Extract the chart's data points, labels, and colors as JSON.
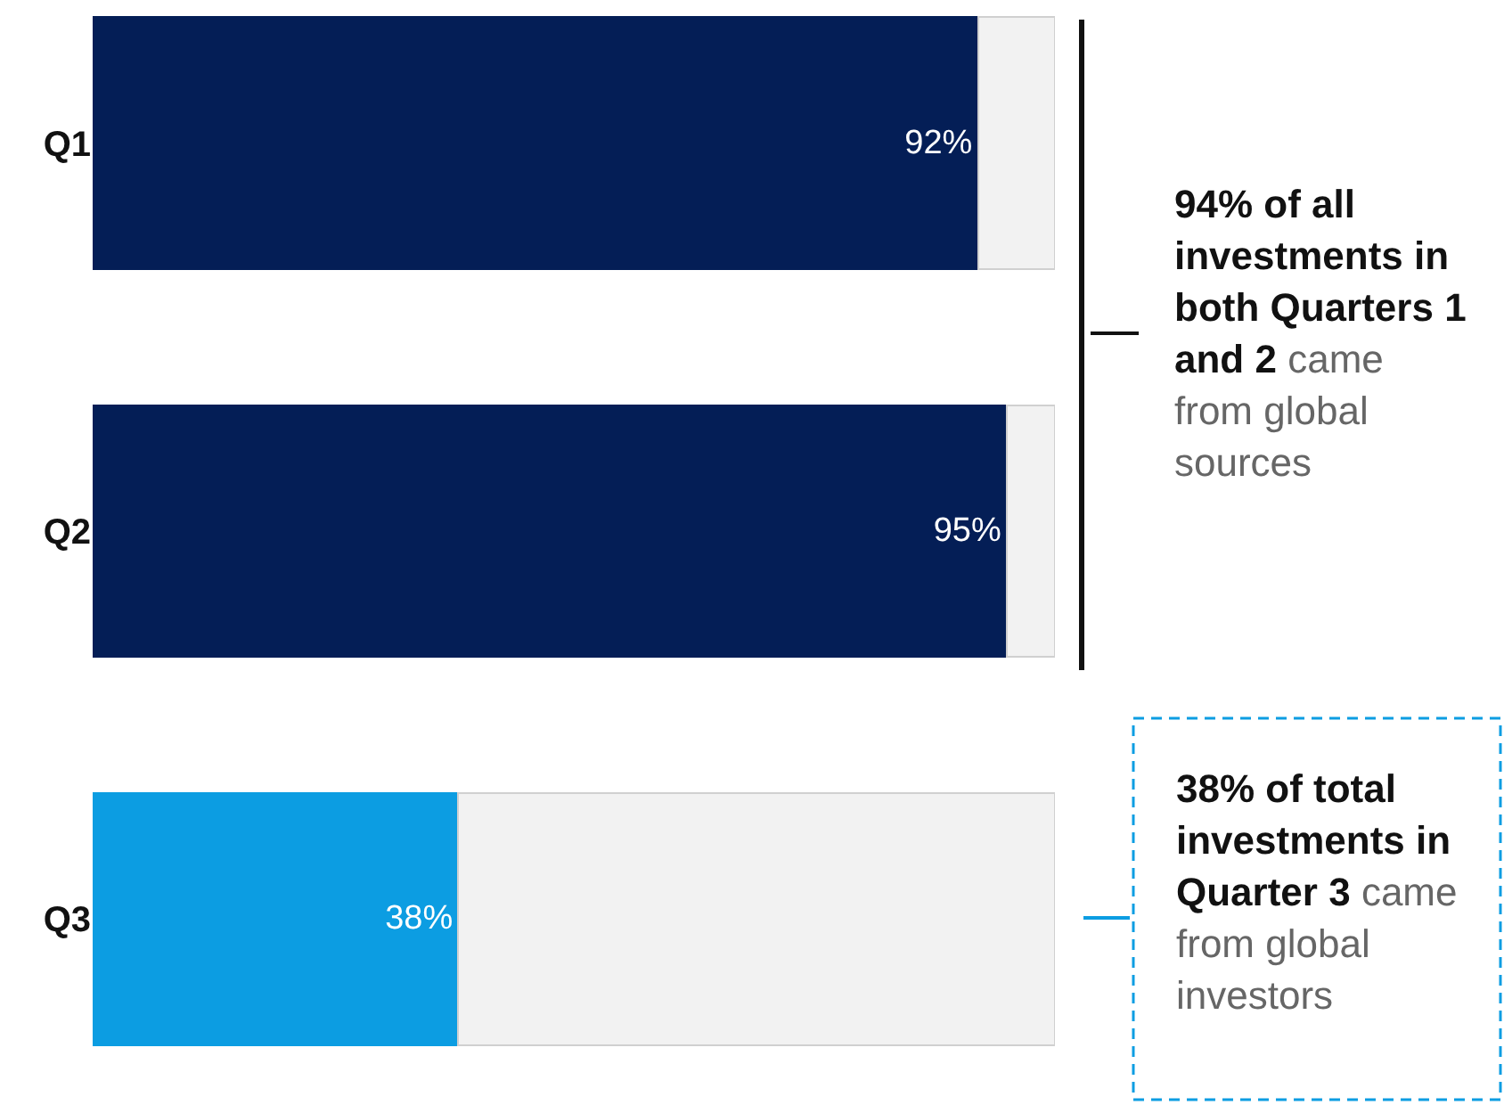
{
  "chart_data": {
    "type": "bar",
    "orientation": "horizontal",
    "stacked": true,
    "categories": [
      "Q1",
      "Q2",
      "Q3"
    ],
    "series": [
      {
        "colors": [
          "#041e56",
          "#041e56",
          "#0c9de2"
        ],
        "values": [
          92,
          95,
          38
        ],
        "value_labels": [
          "92%",
          "95%",
          "38%"
        ]
      },
      {
        "color": "#f2f2f2",
        "values": [
          8,
          5,
          62
        ]
      }
    ],
    "xlim": [
      0,
      100
    ],
    "tick_labels": "y",
    "annotations": [
      "94% of all investments in both Quarters 1 and 2",
      "came from global sources",
      "38% of total investments in Quarter 3",
      "came from global investors"
    ]
  }
}
